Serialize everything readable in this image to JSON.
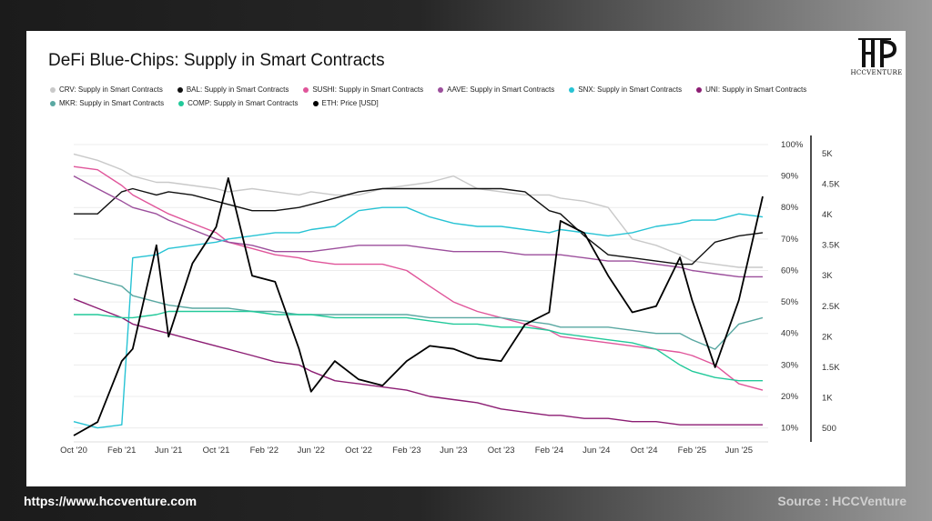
{
  "footer": {
    "url": "https://www.hccventure.com",
    "source": "Source : HCCVenture"
  },
  "logo": {
    "text": "HCCVENTURE",
    "icon": "hcc-logo-icon"
  },
  "chart_data": {
    "type": "line",
    "title": "DeFi Blue-Chips: Supply in Smart Contracts",
    "legend_placement": "top",
    "grid": true,
    "x_range": [
      "2020-10",
      "2025-08"
    ],
    "x_ticks": [
      "Oct '20",
      "Feb '21",
      "Jun '21",
      "Oct '21",
      "Feb '22",
      "Jun '22",
      "Oct '22",
      "Feb '23",
      "Jun '23",
      "Oct '23",
      "Feb '24",
      "Jun '24",
      "Oct '24",
      "Feb '25",
      "Jun '25"
    ],
    "y_left": {
      "ticks": [
        "100%",
        "90%",
        "80%",
        "70%",
        "60%",
        "50%",
        "40%",
        "30%",
        "20%",
        "10%"
      ],
      "range": [
        0.07,
        1.0
      ]
    },
    "y_right": {
      "ticks": [
        "5K",
        "4.5K",
        "4K",
        "3.5K",
        "3K",
        "2.5K",
        "2K",
        "1.5K",
        "1K",
        "500"
      ],
      "range": [
        350,
        5150
      ]
    },
    "x_dates": [
      "2020-10",
      "2020-12",
      "2021-02",
      "2021-03",
      "2021-05",
      "2021-06",
      "2021-08",
      "2021-10",
      "2021-11",
      "2022-01",
      "2022-03",
      "2022-05",
      "2022-06",
      "2022-08",
      "2022-10",
      "2022-12",
      "2023-02",
      "2023-04",
      "2023-06",
      "2023-08",
      "2023-10",
      "2023-12",
      "2024-02",
      "2024-03",
      "2024-05",
      "2024-07",
      "2024-09",
      "2024-11",
      "2025-01",
      "2025-02",
      "2025-04",
      "2025-06",
      "2025-08"
    ],
    "series": [
      {
        "name": "CRV: Supply in Smart Contracts",
        "color": "#c9c9c9",
        "axis": "left",
        "values": [
          0.97,
          0.95,
          0.92,
          0.9,
          0.88,
          0.88,
          0.87,
          0.86,
          0.85,
          0.86,
          0.85,
          0.84,
          0.85,
          0.84,
          0.84,
          0.86,
          0.87,
          0.88,
          0.9,
          0.86,
          0.85,
          0.84,
          0.84,
          0.83,
          0.82,
          0.8,
          0.7,
          0.68,
          0.65,
          0.63,
          0.62,
          0.61,
          0.61
        ]
      },
      {
        "name": "BAL: Supply in Smart Contracts",
        "color": "#111111",
        "axis": "left",
        "values": [
          0.78,
          0.78,
          0.85,
          0.86,
          0.84,
          0.85,
          0.84,
          0.82,
          0.81,
          0.79,
          0.79,
          0.8,
          0.81,
          0.83,
          0.85,
          0.86,
          0.86,
          0.86,
          0.86,
          0.86,
          0.86,
          0.85,
          0.79,
          0.78,
          0.71,
          0.65,
          0.64,
          0.63,
          0.62,
          0.62,
          0.69,
          0.71,
          0.72
        ]
      },
      {
        "name": "SUSHI: Supply in Smart Contracts",
        "color": "#e0559a",
        "axis": "left",
        "values": [
          0.93,
          0.92,
          0.87,
          0.84,
          0.8,
          0.78,
          0.75,
          0.72,
          0.69,
          0.67,
          0.65,
          0.64,
          0.63,
          0.62,
          0.62,
          0.62,
          0.6,
          0.55,
          0.5,
          0.47,
          0.45,
          0.43,
          0.41,
          0.39,
          0.38,
          0.37,
          0.36,
          0.35,
          0.34,
          0.33,
          0.3,
          0.24,
          0.22
        ]
      },
      {
        "name": "AAVE: Supply in Smart Contracts",
        "color": "#9c4f9c",
        "axis": "left",
        "values": [
          0.9,
          0.86,
          0.82,
          0.8,
          0.78,
          0.76,
          0.73,
          0.7,
          0.69,
          0.68,
          0.66,
          0.66,
          0.66,
          0.67,
          0.68,
          0.68,
          0.68,
          0.67,
          0.66,
          0.66,
          0.66,
          0.65,
          0.65,
          0.65,
          0.64,
          0.63,
          0.63,
          0.62,
          0.61,
          0.6,
          0.59,
          0.58,
          0.58
        ]
      },
      {
        "name": "SNX: Supply in Smart Contracts",
        "color": "#27c3d4",
        "axis": "left",
        "values": [
          0.12,
          0.1,
          0.11,
          0.64,
          0.65,
          0.67,
          0.68,
          0.69,
          0.7,
          0.71,
          0.72,
          0.72,
          0.73,
          0.74,
          0.79,
          0.8,
          0.8,
          0.77,
          0.75,
          0.74,
          0.74,
          0.73,
          0.72,
          0.73,
          0.72,
          0.71,
          0.72,
          0.74,
          0.75,
          0.76,
          0.76,
          0.78,
          0.77
        ]
      },
      {
        "name": "UNI: Supply in Smart Contracts",
        "color": "#8c1d73",
        "axis": "left",
        "values": [
          0.51,
          0.48,
          0.45,
          0.43,
          0.41,
          0.4,
          0.38,
          0.36,
          0.35,
          0.33,
          0.31,
          0.3,
          0.28,
          0.25,
          0.24,
          0.23,
          0.22,
          0.2,
          0.19,
          0.18,
          0.16,
          0.15,
          0.14,
          0.14,
          0.13,
          0.13,
          0.12,
          0.12,
          0.11,
          0.11,
          0.11,
          0.11,
          0.11
        ]
      },
      {
        "name": "MKR: Supply in Smart Contracts",
        "color": "#5aa8a2",
        "axis": "left",
        "values": [
          0.59,
          0.57,
          0.55,
          0.52,
          0.5,
          0.49,
          0.48,
          0.48,
          0.48,
          0.47,
          0.47,
          0.46,
          0.46,
          0.46,
          0.46,
          0.46,
          0.46,
          0.45,
          0.45,
          0.45,
          0.45,
          0.44,
          0.43,
          0.42,
          0.42,
          0.42,
          0.41,
          0.4,
          0.4,
          0.38,
          0.35,
          0.43,
          0.45
        ]
      },
      {
        "name": "COMP: Supply in Smart Contracts",
        "color": "#22c99a",
        "axis": "left",
        "values": [
          0.46,
          0.46,
          0.45,
          0.45,
          0.46,
          0.47,
          0.47,
          0.47,
          0.47,
          0.47,
          0.46,
          0.46,
          0.46,
          0.45,
          0.45,
          0.45,
          0.45,
          0.44,
          0.43,
          0.43,
          0.42,
          0.42,
          0.41,
          0.4,
          0.39,
          0.38,
          0.37,
          0.35,
          0.3,
          0.28,
          0.26,
          0.25,
          0.25
        ]
      },
      {
        "name": "ETH: Price [USD]",
        "color": "#000000",
        "axis": "right",
        "values": [
          380,
          600,
          1600,
          1800,
          3500,
          2000,
          3200,
          3800,
          4600,
          3000,
          2900,
          1800,
          1100,
          1600,
          1300,
          1200,
          1600,
          1850,
          1800,
          1650,
          1600,
          2200,
          2400,
          3900,
          3700,
          3000,
          2400,
          2500,
          3300,
          2600,
          1500,
          2600,
          4300
        ]
      }
    ]
  }
}
